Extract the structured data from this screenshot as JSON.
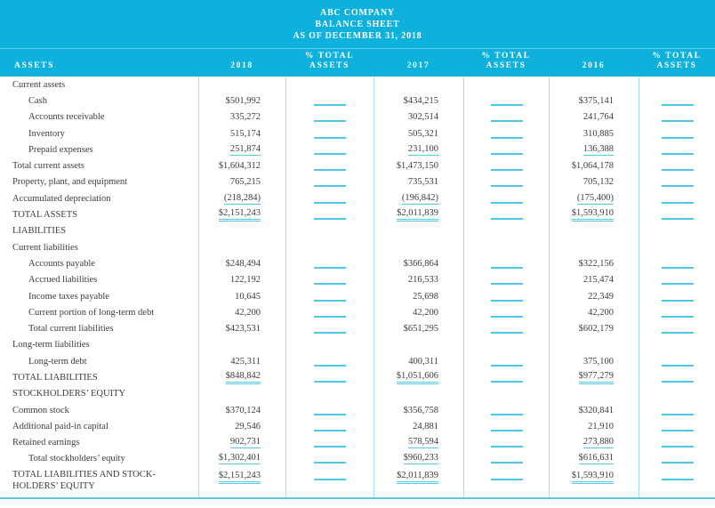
{
  "header": {
    "company": "ABC COMPANY",
    "statement": "BALANCE SHEET",
    "date_line": "AS OF DECEMBER 31, 2018",
    "assets_label": "ASSETS",
    "years": [
      "2018",
      "2017",
      "2016"
    ],
    "pct_line1": "% TOTAL",
    "pct_line2": "ASSETS"
  },
  "colors": {
    "header_bg": "#0eb1db",
    "vertical_rule": "#a8def0",
    "accent_line": "#55c8e7",
    "body_text": "#3c3c3c"
  },
  "table": {
    "rows": [
      {
        "label": "Current assets",
        "indent": 0,
        "values": null,
        "underline": "none"
      },
      {
        "label": "Cash",
        "indent": 1,
        "values": [
          "$501,992",
          "$434,215",
          "$375,141"
        ],
        "underline": "none"
      },
      {
        "label": "Accounts receivable",
        "indent": 1,
        "values": [
          "335,272",
          "302,514",
          "241,764"
        ],
        "underline": "none"
      },
      {
        "label": "Inventory",
        "indent": 1,
        "values": [
          "515,174",
          "505,321",
          "310,885"
        ],
        "underline": "none"
      },
      {
        "label": "Prepaid expenses",
        "indent": 1,
        "values": [
          "251,874",
          "231,100",
          "136,388"
        ],
        "underline": "single"
      },
      {
        "label": "Total current assets",
        "indent": 0,
        "values": [
          "$1,604,312",
          "$1,473,150",
          "$1,064,178"
        ],
        "underline": "none"
      },
      {
        "label": "Property, plant, and equipment",
        "indent": 0,
        "values": [
          "765,215",
          "735,531",
          "705,132"
        ],
        "underline": "none"
      },
      {
        "label": "Accumulated depreciation",
        "indent": 0,
        "values": [
          "(218,284)",
          "(196,842)",
          "(175,400)"
        ],
        "underline": "single"
      },
      {
        "label": "TOTAL ASSETS",
        "indent": 0,
        "values": [
          "$2,151,243",
          "$2,011,839",
          "$1,593,910"
        ],
        "underline": "double"
      },
      {
        "label": "LIABILITIES",
        "indent": 0,
        "values": null,
        "underline": "none"
      },
      {
        "label": "Current liabilities",
        "indent": 0,
        "values": null,
        "underline": "none"
      },
      {
        "label": "Accounts payable",
        "indent": 1,
        "values": [
          "$248,494",
          "$366,864",
          "$322,156"
        ],
        "underline": "none"
      },
      {
        "label": "Accrued liabilities",
        "indent": 1,
        "values": [
          "122,192",
          "216,533",
          "215,474"
        ],
        "underline": "none"
      },
      {
        "label": "Income taxes payable",
        "indent": 1,
        "values": [
          "10,645",
          "25,698",
          "22,349"
        ],
        "underline": "none"
      },
      {
        "label": "Current portion of long-term debt",
        "indent": 1,
        "values": [
          "42,200",
          "42,200",
          "42,200"
        ],
        "underline": "none"
      },
      {
        "label": "Total current liabilities",
        "indent": 1,
        "values": [
          "$423,531",
          "$651,295",
          "$602,179"
        ],
        "underline": "none"
      },
      {
        "label": "Long-term liabilities",
        "indent": 0,
        "values": null,
        "underline": "none"
      },
      {
        "label": "Long-term debt",
        "indent": 1,
        "values": [
          "425,311",
          "400,311",
          "375,100"
        ],
        "underline": "none"
      },
      {
        "label": "TOTAL LIABILITIES",
        "indent": 0,
        "values": [
          "$848,842",
          "$1,051,606",
          "$977,279"
        ],
        "underline": "double"
      },
      {
        "label": "STOCKHOLDERS’ EQUITY",
        "indent": 0,
        "values": null,
        "underline": "none"
      },
      {
        "label": "Common stock",
        "indent": 0,
        "values": [
          "$370,124",
          "$356,758",
          "$320,841"
        ],
        "underline": "none"
      },
      {
        "label": "Additional paid-in capital",
        "indent": 0,
        "values": [
          "29,546",
          "24,881",
          "21,910"
        ],
        "underline": "none"
      },
      {
        "label": "Retained earnings",
        "indent": 0,
        "values": [
          "902,731",
          "578,594",
          "273,880"
        ],
        "underline": "single"
      },
      {
        "label": "Total stockholders’ equity",
        "indent": 1,
        "values": [
          "$1,302,401",
          "$960,233",
          "$616,631"
        ],
        "underline": "single"
      },
      {
        "label": "TOTAL LIABILITIES AND STOCK-",
        "label2": "HOLDERS’ EQUITY",
        "indent": 0,
        "values": [
          "$2,151,243",
          "$2,011,839",
          "$1,593,910"
        ],
        "underline": "double"
      }
    ]
  }
}
